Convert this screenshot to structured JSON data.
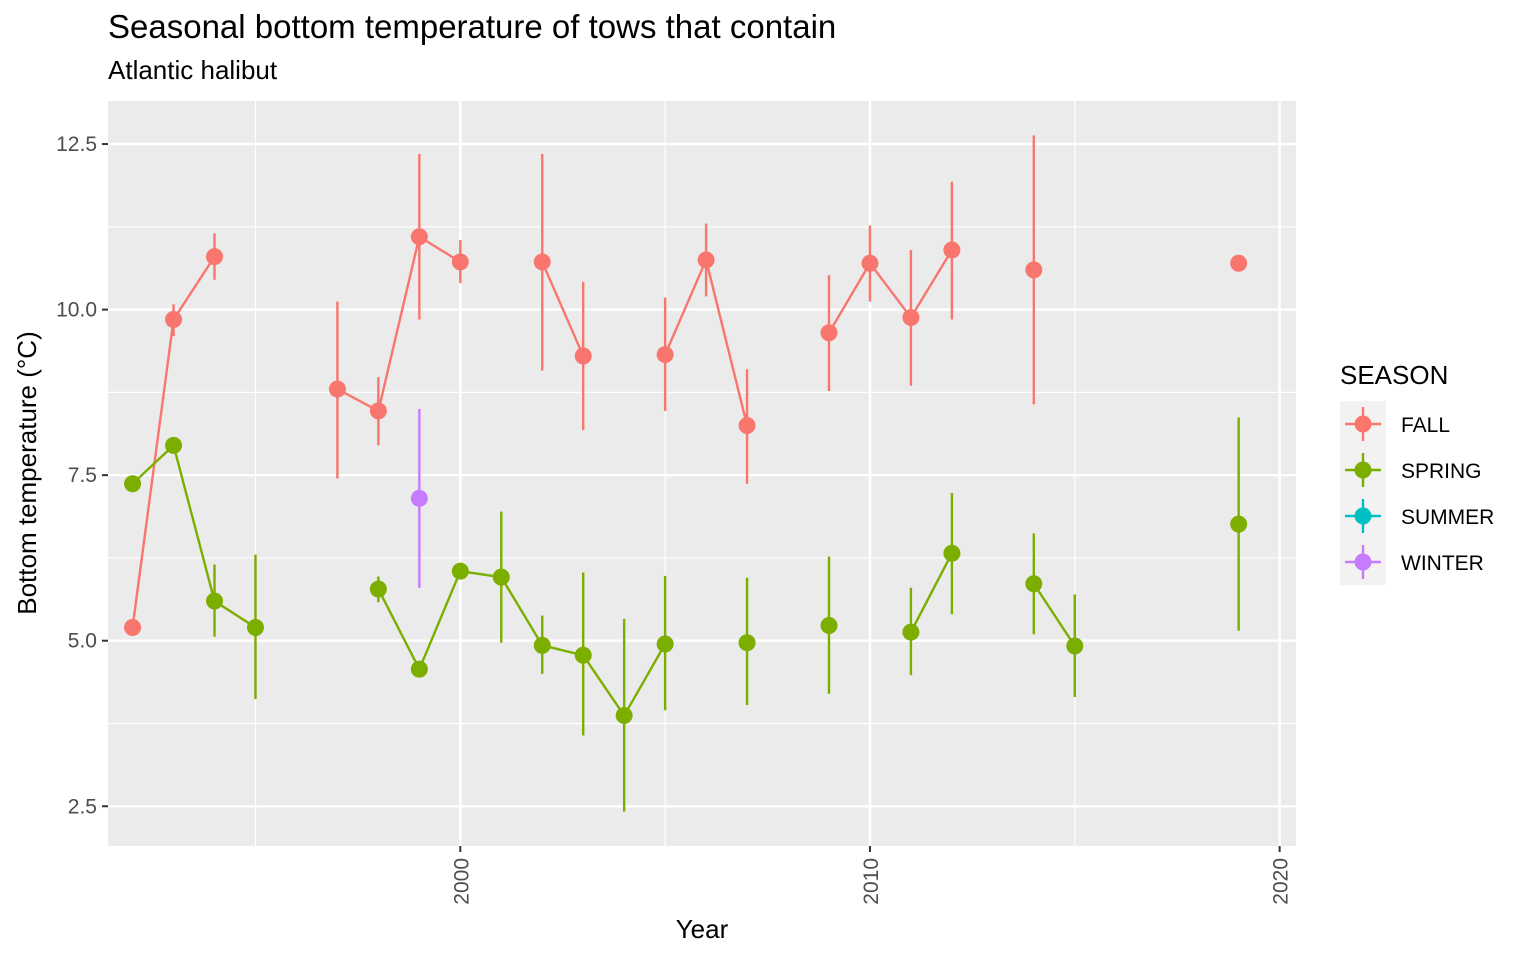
{
  "chart_data": {
    "type": "line",
    "title": "Seasonal bottom temperature of tows that contain",
    "subtitle": "Atlantic halibut",
    "xlabel": "Year",
    "ylabel": "Bottom temperature (°C)",
    "xlim": [
      1991.4,
      2020.4
    ],
    "ylim": [
      1.9,
      13.15
    ],
    "x_ticks": [
      2000,
      2010,
      2020
    ],
    "x_tick_labels": [
      "2000",
      "2010",
      "2020"
    ],
    "x_tick_label_rotation": "vertical",
    "y_ticks": [
      2.5,
      5.0,
      7.5,
      10.0,
      12.5
    ],
    "y_tick_labels": [
      "2.5",
      "5.0",
      "7.5",
      "10.0",
      "12.5"
    ],
    "grid": true,
    "legend": {
      "title": "SEASON",
      "position": "right",
      "entries": [
        "FALL",
        "SPRING",
        "SUMMER",
        "WINTER"
      ]
    },
    "series": [
      {
        "name": "FALL",
        "color": "#F8766D",
        "segments": [
          [
            {
              "x": 1992,
              "y": 5.2,
              "lo": null,
              "hi": null
            },
            {
              "x": 1993,
              "y": 9.85,
              "lo": 9.6,
              "hi": 10.08
            },
            {
              "x": 1994,
              "y": 10.8,
              "lo": 10.45,
              "hi": 11.15
            }
          ],
          [
            {
              "x": 1997,
              "y": 8.8,
              "lo": 7.45,
              "hi": 10.12
            },
            {
              "x": 1998,
              "y": 8.47,
              "lo": 7.95,
              "hi": 8.98
            },
            {
              "x": 1999,
              "y": 11.1,
              "lo": 9.85,
              "hi": 12.35
            },
            {
              "x": 2000,
              "y": 10.72,
              "lo": 10.4,
              "hi": 11.05
            }
          ],
          [
            {
              "x": 2002,
              "y": 10.72,
              "lo": 9.08,
              "hi": 12.35
            },
            {
              "x": 2003,
              "y": 9.3,
              "lo": 8.18,
              "hi": 10.42
            }
          ],
          [
            {
              "x": 2005,
              "y": 9.32,
              "lo": 8.47,
              "hi": 10.18
            },
            {
              "x": 2006,
              "y": 10.75,
              "lo": 10.2,
              "hi": 11.3
            },
            {
              "x": 2007,
              "y": 8.25,
              "lo": 7.37,
              "hi": 9.1
            }
          ],
          [
            {
              "x": 2009,
              "y": 9.65,
              "lo": 8.77,
              "hi": 10.52
            },
            {
              "x": 2010,
              "y": 10.7,
              "lo": 10.12,
              "hi": 11.27
            },
            {
              "x": 2011,
              "y": 9.88,
              "lo": 8.85,
              "hi": 10.9
            },
            {
              "x": 2012,
              "y": 10.9,
              "lo": 9.85,
              "hi": 11.93
            }
          ],
          [
            {
              "x": 2014,
              "y": 10.6,
              "lo": 8.57,
              "hi": 12.63
            }
          ],
          [
            {
              "x": 2019,
              "y": 10.7,
              "lo": null,
              "hi": null
            }
          ]
        ]
      },
      {
        "name": "SPRING",
        "color": "#7CAE00",
        "segments": [
          [
            {
              "x": 1992,
              "y": 7.37,
              "lo": null,
              "hi": null
            },
            {
              "x": 1993,
              "y": 7.95,
              "lo": null,
              "hi": null
            },
            {
              "x": 1994,
              "y": 5.6,
              "lo": 5.06,
              "hi": 6.15
            },
            {
              "x": 1995,
              "y": 5.2,
              "lo": 4.12,
              "hi": 6.3
            }
          ],
          [
            {
              "x": 1998,
              "y": 5.78,
              "lo": 5.58,
              "hi": 5.97
            },
            {
              "x": 1999,
              "y": 4.57,
              "lo": null,
              "hi": null
            },
            {
              "x": 2000,
              "y": 6.05,
              "lo": null,
              "hi": null
            },
            {
              "x": 2001,
              "y": 5.96,
              "lo": 4.97,
              "hi": 6.95
            },
            {
              "x": 2002,
              "y": 4.93,
              "lo": 4.5,
              "hi": 5.38
            },
            {
              "x": 2003,
              "y": 4.78,
              "lo": 3.57,
              "hi": 6.03
            },
            {
              "x": 2004,
              "y": 3.87,
              "lo": 2.42,
              "hi": 5.33
            },
            {
              "x": 2005,
              "y": 4.95,
              "lo": 3.95,
              "hi": 5.98
            }
          ],
          [
            {
              "x": 2007,
              "y": 4.97,
              "lo": 4.03,
              "hi": 5.95
            }
          ],
          [
            {
              "x": 2009,
              "y": 5.23,
              "lo": 4.2,
              "hi": 6.27
            }
          ],
          [
            {
              "x": 2011,
              "y": 5.13,
              "lo": 4.48,
              "hi": 5.8
            },
            {
              "x": 2012,
              "y": 6.32,
              "lo": 5.4,
              "hi": 7.23
            }
          ],
          [
            {
              "x": 2014,
              "y": 5.86,
              "lo": 5.1,
              "hi": 6.62
            },
            {
              "x": 2015,
              "y": 4.92,
              "lo": 4.15,
              "hi": 5.7
            }
          ],
          [
            {
              "x": 2019,
              "y": 6.76,
              "lo": 5.15,
              "hi": 8.37
            }
          ]
        ]
      },
      {
        "name": "SUMMER",
        "color": "#00BFC4",
        "segments": []
      },
      {
        "name": "WINTER",
        "color": "#C77CFF",
        "segments": [
          [
            {
              "x": 1999,
              "y": 7.15,
              "lo": 5.8,
              "hi": 8.5
            }
          ]
        ]
      }
    ]
  }
}
